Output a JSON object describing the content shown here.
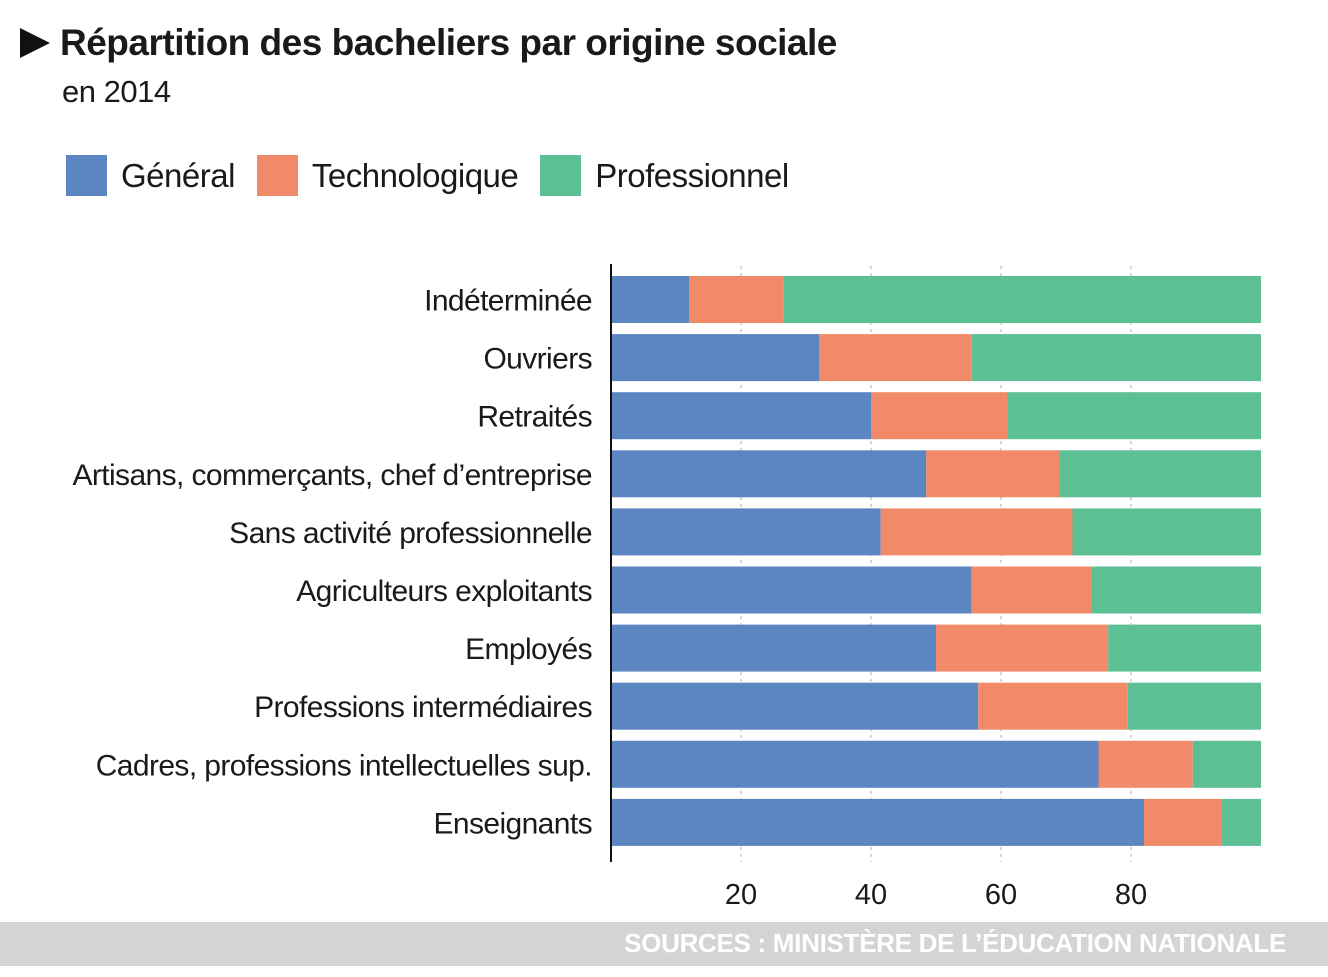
{
  "title": "Répartition des bacheliers par origine sociale",
  "subtitle": "en 2014",
  "legend": [
    {
      "label": "Général",
      "color": "#5b86c2"
    },
    {
      "label": "Technologique",
      "color": "#f18a68"
    },
    {
      "label": "Professionnel",
      "color": "#5dbf94"
    }
  ],
  "source": "SOURCES : MINISTÈRE DE L’ÉDUCATION NATIONALE",
  "chart_data": {
    "type": "bar",
    "orientation": "horizontal",
    "stacked": true,
    "categories": [
      "Indéterminée",
      "Ouvriers",
      "Retraités",
      "Artisans, commerçants, chef d’entreprise",
      "Sans activité professionnelle",
      "Agriculteurs exploitants",
      "Employés",
      "Professions intermédiaires",
      "Cadres, professions intellectuelles sup.",
      "Enseignants"
    ],
    "series": [
      {
        "name": "Général",
        "color": "#5b86c2",
        "values": [
          12,
          32,
          40,
          48.5,
          41.5,
          55.5,
          50,
          56.5,
          75,
          82
        ]
      },
      {
        "name": "Technologique",
        "color": "#f18a68",
        "values": [
          14.5,
          23.5,
          21,
          20.5,
          29.5,
          18.5,
          26.5,
          23,
          14.5,
          12
        ]
      },
      {
        "name": "Professionnel",
        "color": "#5dbf94",
        "values": [
          73.5,
          44.5,
          39,
          31,
          29,
          26,
          23.5,
          20.5,
          10.5,
          6
        ]
      }
    ],
    "xticks": [
      20,
      40,
      60,
      80
    ],
    "xlim": [
      0,
      100
    ],
    "grid": "vertical-dashed"
  }
}
